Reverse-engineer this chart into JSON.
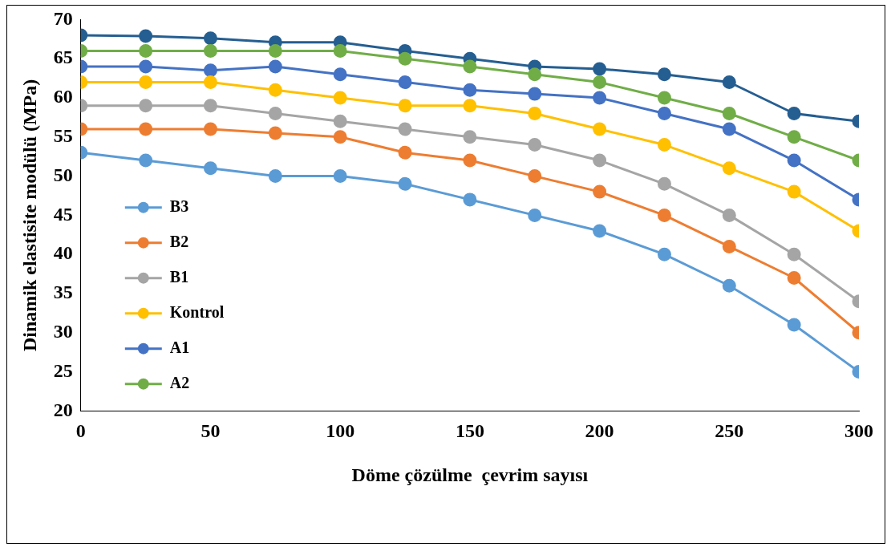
{
  "chart_data": {
    "type": "line",
    "xlabel": "Döme çözülme  çevrim sayısı",
    "ylabel": "Dinamik elastisite modülü (MPa)",
    "x": [
      0,
      25,
      50,
      75,
      100,
      125,
      150,
      175,
      200,
      225,
      250,
      275,
      300
    ],
    "series": [
      {
        "name": "B3",
        "color": "#5b9bd5",
        "values": [
          53,
          52,
          51,
          50,
          50,
          49,
          47,
          45,
          43,
          40,
          36,
          31,
          25
        ]
      },
      {
        "name": "B2",
        "color": "#ed7d31",
        "values": [
          56,
          56,
          56,
          55.5,
          55,
          53,
          52,
          50,
          48,
          45,
          41,
          37,
          30
        ]
      },
      {
        "name": "B1",
        "color": "#a5a5a5",
        "values": [
          59,
          59,
          59,
          58,
          57,
          56,
          55,
          54,
          52,
          49,
          45,
          40,
          34
        ]
      },
      {
        "name": "Kontrol",
        "color": "#ffc000",
        "values": [
          62,
          62,
          62,
          61,
          60,
          59,
          59,
          58,
          56,
          54,
          51,
          48,
          43
        ]
      },
      {
        "name": "A1",
        "color": "#4472c4",
        "values": [
          64,
          64,
          63.5,
          64,
          63,
          62,
          61,
          60.5,
          60,
          58,
          56,
          52,
          47
        ]
      },
      {
        "name": "A2",
        "color": "#70ad47",
        "values": [
          66,
          66,
          66,
          66,
          66,
          65,
          64,
          63,
          62,
          60,
          58,
          55,
          52
        ]
      },
      {
        "color": "#255e91",
        "values": [
          68,
          67.9,
          67.6,
          67.1,
          67.1,
          66,
          65,
          64,
          63.7,
          63,
          62,
          58,
          57
        ]
      }
    ],
    "xlim": [
      0,
      300
    ],
    "xticks": [
      0,
      50,
      100,
      150,
      200,
      250,
      300
    ],
    "ylim": [
      20,
      70
    ],
    "yticks": [
      20,
      25,
      30,
      35,
      40,
      45,
      50,
      55,
      60,
      65,
      70
    ],
    "grid": false,
    "legend": "left",
    "marker": "circle",
    "line_style": "solid"
  }
}
